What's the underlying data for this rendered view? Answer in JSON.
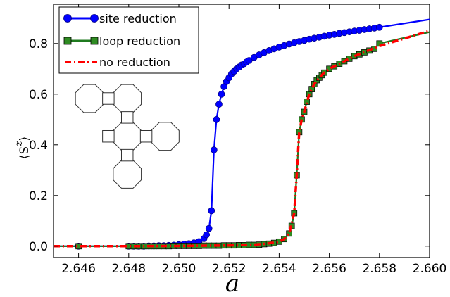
{
  "chart_data": {
    "type": "line",
    "xlabel": "a",
    "ylabel_main": "⟨S",
    "ylabel_sup": "z",
    "ylabel_close": "⟩",
    "xlim": [
      2.645,
      2.66
    ],
    "ylim": [
      -0.045,
      0.955
    ],
    "xticks": [
      "2.646",
      "2.648",
      "2.650",
      "2.652",
      "2.654",
      "2.656",
      "2.658",
      "2.660"
    ],
    "xtick_values": [
      2.646,
      2.648,
      2.65,
      2.652,
      2.654,
      2.656,
      2.658,
      2.66
    ],
    "yticks": [
      "0.0",
      "0.2",
      "0.4",
      "0.6",
      "0.8"
    ],
    "ytick_values": [
      0.0,
      0.2,
      0.4,
      0.6,
      0.8
    ],
    "grid": false,
    "legend_position": "top-left",
    "inset": "octagon-square lattice drawing",
    "series": [
      {
        "name": "site reduction",
        "color": "#0000ff",
        "marker": "circle",
        "line": "solid",
        "x": [
          2.645,
          2.646,
          2.648,
          2.6482,
          2.6484,
          2.6486,
          2.6488,
          2.649,
          2.6492,
          2.6494,
          2.6496,
          2.6498,
          2.65,
          2.6502,
          2.6504,
          2.6506,
          2.6508,
          2.651,
          2.6511,
          2.6512,
          2.6513,
          2.6514,
          2.6515,
          2.6516,
          2.6517,
          2.6518,
          2.6519,
          2.652,
          2.6521,
          2.6522,
          2.6523,
          2.6524,
          2.6525,
          2.6526,
          2.6527,
          2.6528,
          2.653,
          2.6532,
          2.6534,
          2.6536,
          2.6538,
          2.654,
          2.6542,
          2.6544,
          2.6546,
          2.6548,
          2.655,
          2.6552,
          2.6554,
          2.6556,
          2.6558,
          2.656,
          2.6562,
          2.6564,
          2.6566,
          2.6568,
          2.657,
          2.6572,
          2.6574,
          2.6576,
          2.6578,
          2.658,
          2.66
        ],
        "y": [
          0.0,
          0.0,
          0.0,
          0.0,
          0.0,
          0.0,
          0.001,
          0.001,
          0.002,
          0.002,
          0.003,
          0.004,
          0.006,
          0.008,
          0.01,
          0.013,
          0.018,
          0.03,
          0.045,
          0.07,
          0.14,
          0.38,
          0.5,
          0.56,
          0.6,
          0.63,
          0.65,
          0.665,
          0.68,
          0.69,
          0.7,
          0.707,
          0.715,
          0.72,
          0.727,
          0.733,
          0.745,
          0.755,
          0.764,
          0.772,
          0.779,
          0.786,
          0.792,
          0.798,
          0.803,
          0.808,
          0.812,
          0.817,
          0.821,
          0.825,
          0.829,
          0.833,
          0.836,
          0.84,
          0.843,
          0.846,
          0.849,
          0.852,
          0.855,
          0.858,
          0.861,
          0.864,
          0.895
        ]
      },
      {
        "name": "loop reduction",
        "color": "#1f7a1f",
        "marker_fill": "#2e8b22",
        "marker": "square",
        "line": "solid",
        "x": [
          2.645,
          2.646,
          2.648,
          2.6482,
          2.6484,
          2.6486,
          2.6488,
          2.649,
          2.6492,
          2.6494,
          2.6496,
          2.6498,
          2.65,
          2.6502,
          2.6504,
          2.6506,
          2.6508,
          2.651,
          2.6512,
          2.6514,
          2.6516,
          2.6518,
          2.652,
          2.6522,
          2.6524,
          2.6526,
          2.6528,
          2.653,
          2.6532,
          2.6534,
          2.6536,
          2.6538,
          2.654,
          2.6542,
          2.6544,
          2.6545,
          2.6546,
          2.6547,
          2.6548,
          2.6549,
          2.655,
          2.6551,
          2.6552,
          2.6553,
          2.6554,
          2.6555,
          2.6556,
          2.6557,
          2.6558,
          2.656,
          2.6562,
          2.6564,
          2.6566,
          2.6568,
          2.657,
          2.6572,
          2.6574,
          2.6576,
          2.6578,
          2.658,
          2.66
        ],
        "y": [
          0.0,
          0.0,
          0.0,
          0.0,
          0.0,
          0.0,
          0.0,
          0.0,
          0.0,
          0.0,
          0.0,
          0.001,
          0.001,
          0.001,
          0.001,
          0.001,
          0.001,
          0.002,
          0.002,
          0.002,
          0.002,
          0.003,
          0.003,
          0.003,
          0.004,
          0.004,
          0.005,
          0.005,
          0.006,
          0.008,
          0.01,
          0.013,
          0.018,
          0.028,
          0.05,
          0.08,
          0.13,
          0.28,
          0.45,
          0.5,
          0.53,
          0.57,
          0.6,
          0.62,
          0.64,
          0.655,
          0.665,
          0.675,
          0.685,
          0.7,
          0.71,
          0.72,
          0.73,
          0.74,
          0.75,
          0.757,
          0.765,
          0.772,
          0.779,
          0.8,
          0.845
        ]
      },
      {
        "name": "no reduction",
        "color": "#ff0000",
        "marker": "none",
        "line": "dashdot",
        "x": [
          2.645,
          2.648,
          2.65,
          2.652,
          2.653,
          2.6535,
          2.654,
          2.6542,
          2.6544,
          2.6546,
          2.6547,
          2.6548,
          2.6549,
          2.655,
          2.6552,
          2.6554,
          2.6556,
          2.6558,
          2.656,
          2.6565,
          2.657,
          2.6575,
          2.658,
          2.66
        ],
        "y": [
          0.0,
          0.0,
          0.001,
          0.003,
          0.006,
          0.01,
          0.018,
          0.028,
          0.05,
          0.13,
          0.28,
          0.45,
          0.5,
          0.53,
          0.6,
          0.64,
          0.665,
          0.685,
          0.7,
          0.725,
          0.75,
          0.77,
          0.79,
          0.85
        ]
      }
    ]
  }
}
